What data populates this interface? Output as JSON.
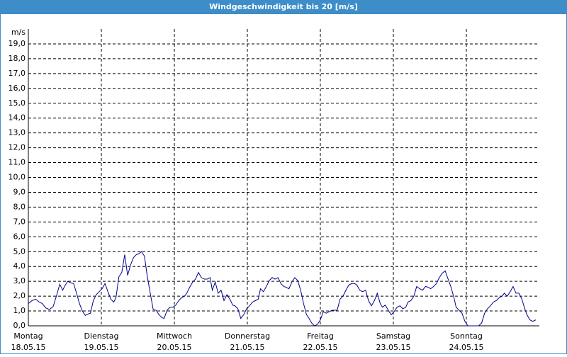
{
  "chart_data": {
    "type": "line",
    "title": "Windgeschwindigkeit bis 20 [m/s]",
    "y_unit": "m/s",
    "ylim": [
      0,
      20
    ],
    "yticks": [
      {
        "value": 0,
        "label": "0,0"
      },
      {
        "value": 1,
        "label": "1,0"
      },
      {
        "value": 2,
        "label": "2,0"
      },
      {
        "value": 3,
        "label": "3,0"
      },
      {
        "value": 4,
        "label": "4,0"
      },
      {
        "value": 5,
        "label": "5,0"
      },
      {
        "value": 6,
        "label": "6,0"
      },
      {
        "value": 7,
        "label": "7,0"
      },
      {
        "value": 8,
        "label": "8,0"
      },
      {
        "value": 9,
        "label": "9,0"
      },
      {
        "value": 10,
        "label": "10,0"
      },
      {
        "value": 11,
        "label": "11,0"
      },
      {
        "value": 12,
        "label": "12,0"
      },
      {
        "value": 13,
        "label": "13,0"
      },
      {
        "value": 14,
        "label": "14,0"
      },
      {
        "value": 15,
        "label": "15,0"
      },
      {
        "value": 16,
        "label": "16,0"
      },
      {
        "value": 17,
        "label": "17,0"
      },
      {
        "value": 18,
        "label": "18,0"
      },
      {
        "value": 19,
        "label": "19,0"
      }
    ],
    "xlim": [
      0,
      7
    ],
    "xticks": [
      {
        "value": 0,
        "label": "Montag"
      },
      {
        "value": 1,
        "label": "Dienstag"
      },
      {
        "value": 2,
        "label": "Mittwoch"
      },
      {
        "value": 3,
        "label": "Donnerstag"
      },
      {
        "value": 4,
        "label": "Freitag"
      },
      {
        "value": 5,
        "label": "Samstag"
      },
      {
        "value": 6,
        "label": "Sonntag"
      }
    ],
    "xtick_dates": [
      "18.05.15",
      "19.05.15",
      "20.05.15",
      "21.05.15",
      "22.05.15",
      "23.05.15",
      "24.05.15"
    ],
    "grid": true,
    "series": [
      {
        "color": "#00008b",
        "x": [
          0.0,
          0.05,
          0.1,
          0.15,
          0.19,
          0.24,
          0.29,
          0.34,
          0.39,
          0.43,
          0.47,
          0.5,
          0.54,
          0.58,
          0.62,
          0.66,
          0.7,
          0.74,
          0.78,
          0.82,
          0.85,
          0.89,
          0.93,
          0.97,
          1.01,
          1.05,
          1.09,
          1.13,
          1.17,
          1.2,
          1.24,
          1.28,
          1.32,
          1.36,
          1.4,
          1.44,
          1.48,
          1.51,
          1.55,
          1.59,
          1.63,
          1.67,
          1.71,
          1.75,
          1.79,
          1.83,
          1.86,
          1.9,
          1.94,
          1.98,
          2.02,
          2.06,
          2.1,
          2.14,
          2.17,
          2.21,
          2.25,
          2.29,
          2.33,
          2.37,
          2.41,
          2.45,
          2.49,
          2.52,
          2.56,
          2.6,
          2.64,
          2.68,
          2.72,
          2.76,
          2.8,
          2.83,
          2.87,
          2.91,
          2.95,
          2.99,
          3.03,
          3.07,
          3.11,
          3.15,
          3.18,
          3.22,
          3.26,
          3.3,
          3.34,
          3.38,
          3.42,
          3.46,
          3.5,
          3.53,
          3.57,
          3.61,
          3.65,
          3.69,
          3.73,
          3.77,
          3.81,
          3.84,
          3.88,
          3.92,
          3.96,
          4.0,
          4.04,
          4.08,
          4.12,
          4.16,
          4.19,
          4.23,
          4.27,
          4.31,
          4.35,
          4.39,
          4.43,
          4.47,
          4.5,
          4.54,
          4.58,
          4.62,
          4.66,
          4.7,
          4.74,
          4.78,
          4.82,
          4.85,
          4.89,
          4.93,
          4.97,
          5.01,
          5.05,
          5.09,
          5.13,
          5.17,
          5.2,
          5.24,
          5.28,
          5.32,
          5.36,
          5.4,
          5.44,
          5.48,
          5.51,
          5.55,
          5.59,
          5.63,
          5.67,
          5.71,
          5.75,
          5.79,
          5.83,
          5.86,
          5.9,
          5.94,
          5.98,
          6.02,
          6.06,
          6.1,
          6.14,
          6.17,
          6.21,
          6.25,
          6.29,
          6.33,
          6.37,
          6.41,
          6.45,
          6.49,
          6.52,
          6.56,
          6.6,
          6.64,
          6.68,
          6.72,
          6.76,
          6.8,
          6.83,
          6.87,
          6.91,
          6.95
        ],
        "values": [
          1.5,
          1.7,
          1.8,
          1.6,
          1.5,
          1.2,
          1.1,
          1.3,
          2.1,
          2.8,
          2.4,
          2.7,
          3.0,
          2.9,
          2.85,
          2.2,
          1.5,
          1.0,
          0.7,
          0.8,
          0.85,
          1.7,
          2.1,
          2.3,
          2.5,
          2.85,
          2.3,
          1.8,
          1.6,
          1.9,
          3.3,
          3.6,
          4.8,
          3.4,
          4.1,
          4.6,
          4.8,
          4.85,
          5.0,
          4.7,
          3.3,
          2.2,
          1.1,
          1.05,
          0.75,
          0.55,
          0.5,
          1.05,
          1.25,
          1.25,
          1.4,
          1.7,
          1.9,
          2.0,
          2.2,
          2.6,
          2.95,
          3.15,
          3.6,
          3.25,
          3.15,
          3.15,
          3.25,
          2.4,
          2.95,
          2.2,
          2.4,
          1.7,
          2.1,
          1.8,
          1.4,
          1.35,
          1.15,
          0.5,
          0.75,
          1.15,
          1.35,
          1.6,
          1.7,
          1.8,
          2.5,
          2.3,
          2.65,
          3.05,
          3.25,
          3.15,
          3.25,
          2.85,
          2.65,
          2.6,
          2.5,
          2.95,
          3.25,
          3.05,
          2.4,
          1.5,
          0.75,
          0.55,
          0.2,
          0,
          0.1,
          0.4,
          0.95,
          0.85,
          0.95,
          1.05,
          1.05,
          1.05,
          1.8,
          2.0,
          2.4,
          2.75,
          2.85,
          2.85,
          2.75,
          2.4,
          2.3,
          2.4,
          1.7,
          1.35,
          1.7,
          2.2,
          1.5,
          1.25,
          1.4,
          1.05,
          0.75,
          0.95,
          1.25,
          1.35,
          1.15,
          1.25,
          1.6,
          1.7,
          2.0,
          2.65,
          2.5,
          2.4,
          2.65,
          2.6,
          2.5,
          2.65,
          2.85,
          3.25,
          3.55,
          3.7,
          3.15,
          2.6,
          1.9,
          1.25,
          1.05,
          0.85,
          0.3,
          0,
          0,
          0,
          0,
          0,
          0.2,
          0.85,
          1.15,
          1.35,
          1.6,
          1.7,
          1.9,
          2.0,
          2.2,
          2.0,
          2.3,
          2.65,
          2.2,
          2.2,
          1.8,
          1.15,
          0.75,
          0.4,
          0.3,
          0.4
        ]
      }
    ]
  }
}
